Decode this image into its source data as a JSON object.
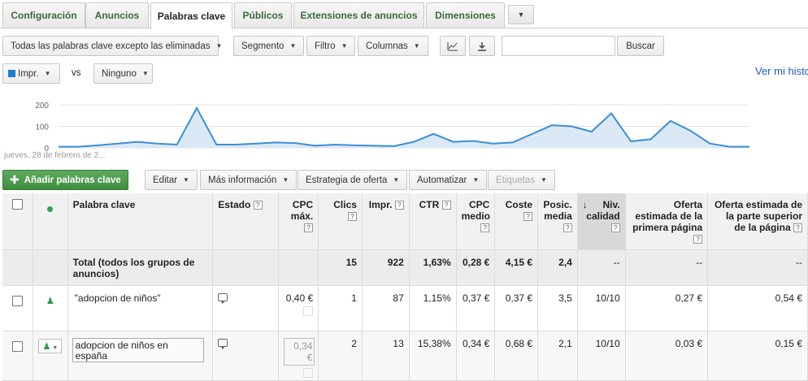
{
  "tabs": [
    {
      "label": "Configuración"
    },
    {
      "label": "Anuncios"
    },
    {
      "label": "Palabras clave"
    },
    {
      "label": "Públicos"
    },
    {
      "label": "Extensiones de anuncios"
    },
    {
      "label": "Dimensiones"
    }
  ],
  "toolbar": {
    "filter_all": "Todas las palabras clave excepto las eliminadas",
    "segment": "Segmento",
    "filter": "Filtro",
    "columns": "Columnas",
    "search_button": "Buscar",
    "search_value": ""
  },
  "chart_controls": {
    "metric1": "Impr.",
    "vs": "vs",
    "metric2": "Ninguno",
    "history_link": "Ver mi histo"
  },
  "chart_data": {
    "type": "area",
    "ylabel": "",
    "yticks": [
      "200",
      "100",
      "0"
    ],
    "ylim": [
      0,
      230
    ],
    "start_label": "jueves, 28 de febrero de 2...",
    "series": [
      {
        "values": [
          5,
          5,
          12,
          20,
          28,
          20,
          15,
          185,
          15,
          15,
          20,
          25,
          22,
          10,
          15,
          12,
          10,
          8,
          28,
          65,
          28,
          32,
          20,
          25,
          65,
          105,
          100,
          75,
          160,
          30,
          40,
          125,
          80,
          20,
          5,
          5
        ]
      }
    ],
    "colors": {
      "line": "#3a8fd6",
      "fill": "#dbe9f6"
    }
  },
  "actions": {
    "add_keywords": "Añadir palabras clave",
    "edit": "Editar",
    "more_info": "Más información",
    "bid_strategy": "Estrategia de oferta",
    "automate": "Automatizar",
    "labels": "Etiquetas"
  },
  "table": {
    "headers": {
      "keyword": "Palabra clave",
      "status": "Estado",
      "max_cpc": "CPC máx.",
      "clicks": "Clics",
      "impr": "Impr.",
      "ctr": "CTR",
      "avg_cpc": "CPC medio",
      "cost": "Coste",
      "avg_pos": "Posic. media",
      "quality": "Niv. calidad",
      "first_page_bid": "Oferta estimada de la primera página",
      "top_page_bid": "Oferta estimada de la parte superior de la página"
    },
    "total": {
      "label": "Total (todos los grupos de anuncios)",
      "clicks": "15",
      "impr": "922",
      "ctr": "1,63%",
      "avg_cpc": "0,28 €",
      "cost": "4,15 €",
      "avg_pos": "2,4",
      "quality": "--",
      "first_page_bid": "--",
      "top_page_bid": "--"
    },
    "rows": [
      {
        "keyword": "\"adopcion de niños\"",
        "max_cpc": "0,40 €",
        "clicks": "1",
        "impr": "87",
        "ctr": "1,15%",
        "avg_cpc": "0,37 €",
        "cost": "0,37 €",
        "avg_pos": "3,5",
        "quality": "10/10",
        "first_page_bid": "0,27 €",
        "top_page_bid": "0,54 €"
      },
      {
        "keyword": "adopcion de niños en españa",
        "max_cpc": "0,34 €",
        "clicks": "2",
        "impr": "13",
        "ctr": "15,38%",
        "avg_cpc": "0,34 €",
        "cost": "0,68 €",
        "avg_pos": "2,1",
        "quality": "10/10",
        "first_page_bid": "0,03 €",
        "top_page_bid": "0,15 €"
      }
    ]
  }
}
